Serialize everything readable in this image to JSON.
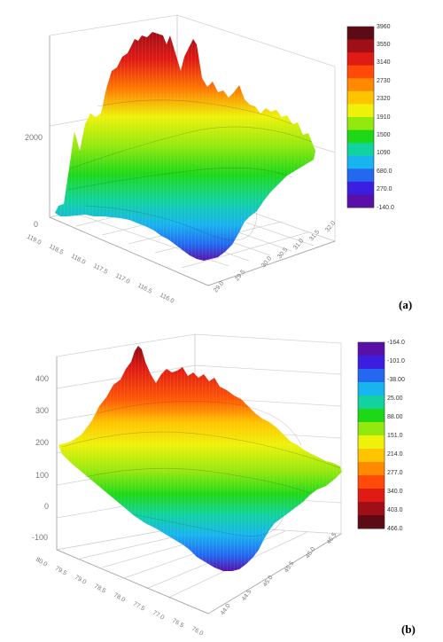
{
  "panels": [
    {
      "label": "(a)",
      "colorbar_colors": [
        "#5c0a14",
        "#a00f17",
        "#e01a14",
        "#ff4a0a",
        "#ff8a00",
        "#ffc400",
        "#eef20a",
        "#93e80e",
        "#1ed818",
        "#12d2a0",
        "#18b4ee",
        "#2468f0",
        "#3c1ee0",
        "#5a0fa8"
      ],
      "chart_data": {
        "type": "surface3d",
        "x_ticks": [
          "119.0",
          "118.5",
          "118.0",
          "117.5",
          "117.0",
          "116.5",
          "116.0"
        ],
        "y_ticks": [
          "32.0",
          "31.5",
          "31.0",
          "30.5",
          "30.0",
          "29.5",
          "29.0"
        ],
        "z_ticks": [
          "0",
          "2000"
        ],
        "colorbar_ticks": [
          "3960",
          "3550",
          "3140",
          "2730",
          "2320",
          "1910",
          "1500",
          "1090",
          "680.0",
          "270.0",
          "-140.0"
        ],
        "zlim": [
          -140,
          3960
        ]
      }
    },
    {
      "label": "(b)",
      "colorbar_colors": [
        "#5a0fa8",
        "#3c1ee0",
        "#2468f0",
        "#18b4ee",
        "#12d2a0",
        "#1ed818",
        "#93e80e",
        "#eef20a",
        "#ffc400",
        "#ff8a00",
        "#ff4a0a",
        "#e01a14",
        "#a00f17",
        "#5c0a14"
      ],
      "chart_data": {
        "type": "surface3d",
        "x_ticks": [
          "80.0",
          "79.5",
          "79.0",
          "78.5",
          "78.0",
          "77.5",
          "77.0",
          "76.5",
          "76.0"
        ],
        "y_ticks": [
          "46.5",
          "46.0",
          "45.5",
          "45.0",
          "44.5",
          "44.0"
        ],
        "z_ticks": [
          "-100",
          "0",
          "100",
          "200",
          "300",
          "400"
        ],
        "colorbar_ticks": [
          "-164.0",
          "-101.0",
          "-38.00",
          "25.00",
          "88.00",
          "151.0",
          "214.0",
          "277.0",
          "340.0",
          "403.0",
          "466.0"
        ],
        "zlim": [
          -164,
          466
        ]
      }
    }
  ]
}
